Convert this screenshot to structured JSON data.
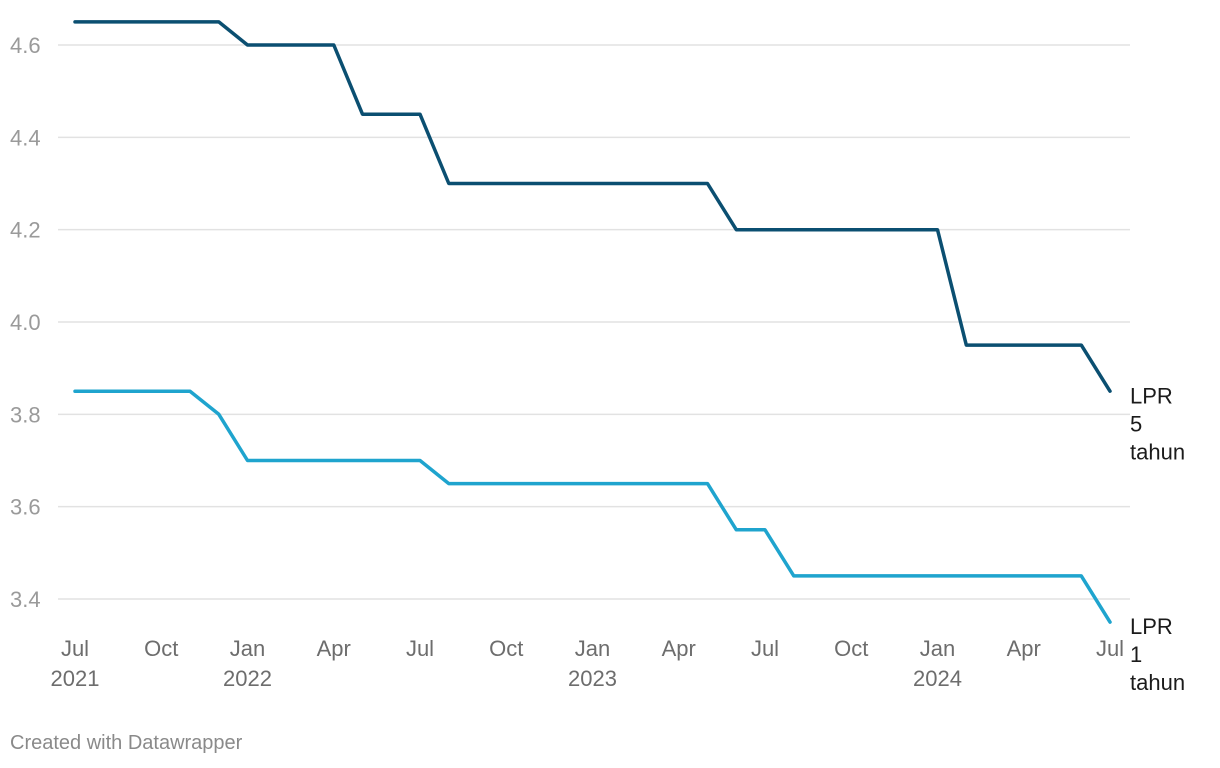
{
  "chart_data": {
    "type": "line",
    "title": "",
    "xlabel": "",
    "ylabel": "",
    "x": [
      "2021-07",
      "2021-08",
      "2021-09",
      "2021-10",
      "2021-11",
      "2021-12",
      "2022-01",
      "2022-02",
      "2022-03",
      "2022-04",
      "2022-05",
      "2022-06",
      "2022-07",
      "2022-08",
      "2022-09",
      "2022-10",
      "2022-11",
      "2022-12",
      "2023-01",
      "2023-02",
      "2023-03",
      "2023-04",
      "2023-05",
      "2023-06",
      "2023-07",
      "2023-08",
      "2023-09",
      "2023-10",
      "2023-11",
      "2023-12",
      "2024-01",
      "2024-02",
      "2024-03",
      "2024-04",
      "2024-05",
      "2024-06",
      "2024-07"
    ],
    "series": [
      {
        "name": "LPR 5 tahun",
        "color": "#0b4f71",
        "values": [
          4.65,
          4.65,
          4.65,
          4.65,
          4.65,
          4.65,
          4.6,
          4.6,
          4.6,
          4.6,
          4.45,
          4.45,
          4.45,
          4.3,
          4.3,
          4.3,
          4.3,
          4.3,
          4.3,
          4.3,
          4.3,
          4.3,
          4.3,
          4.2,
          4.2,
          4.2,
          4.2,
          4.2,
          4.2,
          4.2,
          4.2,
          3.95,
          3.95,
          3.95,
          3.95,
          3.95,
          3.85
        ]
      },
      {
        "name": "LPR 1 tahun",
        "color": "#1fa4ce",
        "values": [
          3.85,
          3.85,
          3.85,
          3.85,
          3.85,
          3.8,
          3.7,
          3.7,
          3.7,
          3.7,
          3.7,
          3.7,
          3.7,
          3.65,
          3.65,
          3.65,
          3.65,
          3.65,
          3.65,
          3.65,
          3.65,
          3.65,
          3.65,
          3.55,
          3.55,
          3.45,
          3.45,
          3.45,
          3.45,
          3.45,
          3.45,
          3.45,
          3.45,
          3.45,
          3.45,
          3.45,
          3.35
        ]
      }
    ],
    "series_labels": [
      {
        "lines": [
          "LPR",
          "5",
          "tahun"
        ]
      },
      {
        "lines": [
          "LPR",
          "1",
          "tahun"
        ]
      }
    ],
    "ylim": [
      3.35,
      4.65
    ],
    "yticks": [
      {
        "value": 3.4,
        "label": "3.4"
      },
      {
        "value": 3.6,
        "label": "3.6"
      },
      {
        "value": 3.8,
        "label": "3.8"
      },
      {
        "value": 4.0,
        "label": "4.0"
      },
      {
        "value": 4.2,
        "label": "4.2"
      },
      {
        "value": 4.4,
        "label": "4.4"
      },
      {
        "value": 4.6,
        "label": "4.6"
      }
    ],
    "xticks": [
      {
        "date": "2021-07",
        "label": "Jul",
        "year": "2021"
      },
      {
        "date": "2021-10",
        "label": "Oct"
      },
      {
        "date": "2022-01",
        "label": "Jan",
        "year": "2022"
      },
      {
        "date": "2022-04",
        "label": "Apr"
      },
      {
        "date": "2022-07",
        "label": "Jul"
      },
      {
        "date": "2022-10",
        "label": "Oct"
      },
      {
        "date": "2023-01",
        "label": "Jan",
        "year": "2023"
      },
      {
        "date": "2023-04",
        "label": "Apr"
      },
      {
        "date": "2023-07",
        "label": "Jul"
      },
      {
        "date": "2023-10",
        "label": "Oct"
      },
      {
        "date": "2024-01",
        "label": "Jan",
        "year": "2024"
      },
      {
        "date": "2024-04",
        "label": "Apr"
      },
      {
        "date": "2024-07",
        "label": "Jul"
      }
    ],
    "grid": true,
    "gridline_color": "#e2e2e2"
  },
  "credit": "Created with Datawrapper"
}
